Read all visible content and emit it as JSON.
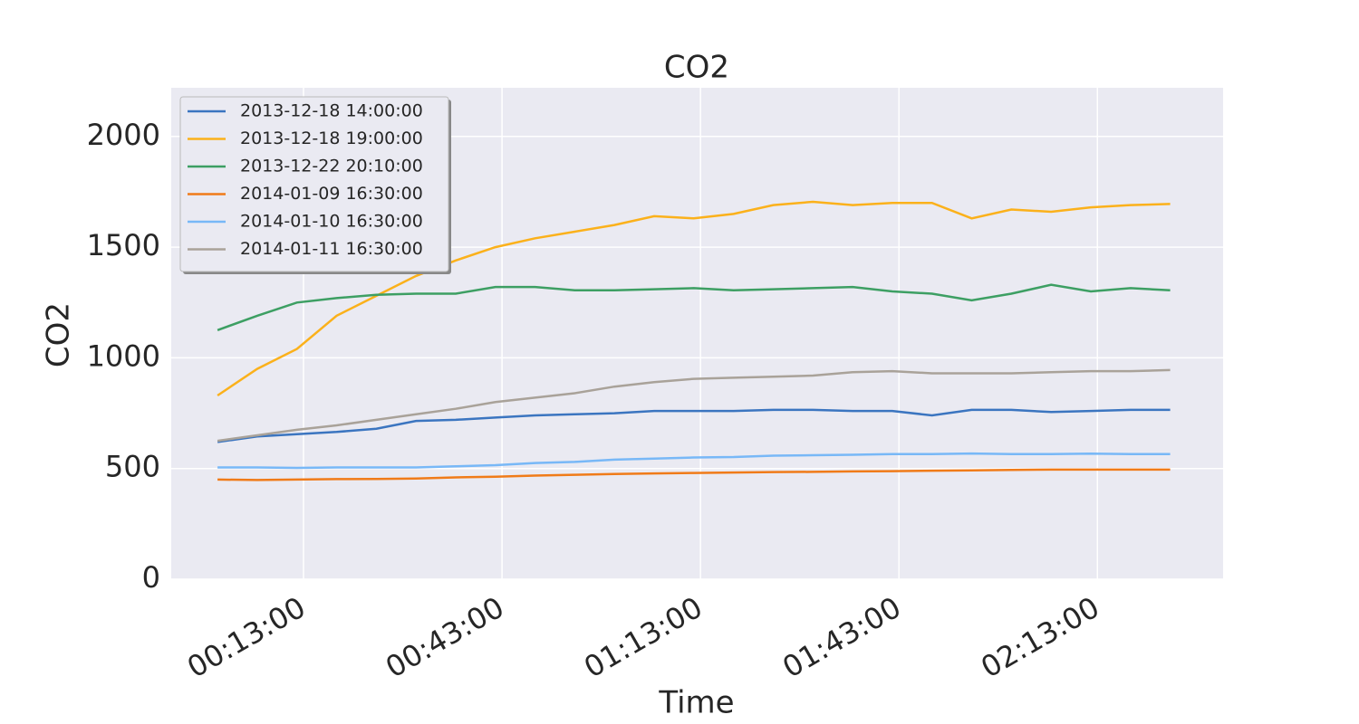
{
  "chart_data": {
    "type": "line",
    "title": "CO2",
    "xlabel": "Time",
    "ylabel": "CO2",
    "x": [
      0,
      6,
      12,
      18,
      24,
      30,
      36,
      42,
      48,
      54,
      60,
      66,
      72,
      78,
      84,
      90,
      96,
      102,
      108,
      114,
      120,
      126,
      132,
      138,
      144
    ],
    "series": [
      {
        "name": "2013-12-18 14:00:00",
        "color": "#3b75c0",
        "values": [
          620,
          645,
          655,
          665,
          680,
          715,
          720,
          730,
          740,
          745,
          750,
          760,
          760,
          760,
          765,
          765,
          760,
          760,
          740,
          765,
          765,
          755,
          760,
          765,
          765
        ]
      },
      {
        "name": "2013-12-18 19:00:00",
        "color": "#fbb11b",
        "values": [
          830,
          950,
          1040,
          1190,
          1280,
          1370,
          1440,
          1500,
          1540,
          1570,
          1600,
          1640,
          1630,
          1650,
          1690,
          1705,
          1690,
          1700,
          1700,
          1630,
          1670,
          1660,
          1680,
          1690,
          1695
        ]
      },
      {
        "name": "2013-12-22 20:10:00",
        "color": "#3d9f63",
        "values": [
          1125,
          1190,
          1250,
          1270,
          1285,
          1290,
          1290,
          1320,
          1320,
          1305,
          1305,
          1310,
          1315,
          1305,
          1310,
          1315,
          1320,
          1300,
          1290,
          1260,
          1290,
          1330,
          1300,
          1315,
          1305
        ]
      },
      {
        "name": "2014-01-09 16:30:00",
        "color": "#f07b19",
        "values": [
          450,
          448,
          450,
          452,
          453,
          455,
          460,
          463,
          468,
          472,
          475,
          478,
          480,
          482,
          484,
          485,
          487,
          488,
          490,
          492,
          494,
          495,
          495,
          495,
          495
        ]
      },
      {
        "name": "2014-01-10 16:30:00",
        "color": "#78b8f7",
        "values": [
          505,
          505,
          503,
          505,
          505,
          505,
          510,
          515,
          525,
          530,
          540,
          545,
          550,
          552,
          558,
          560,
          562,
          565,
          565,
          568,
          565,
          565,
          567,
          565,
          565
        ]
      },
      {
        "name": "2014-01-11 16:30:00",
        "color": "#a9a299",
        "values": [
          625,
          650,
          675,
          695,
          720,
          745,
          770,
          800,
          820,
          840,
          870,
          890,
          905,
          910,
          915,
          920,
          935,
          940,
          930,
          930,
          930,
          935,
          940,
          940,
          945
        ]
      }
    ],
    "xlim": [
      -7,
      152
    ],
    "ylim": [
      0,
      2220
    ],
    "xticks": [
      {
        "value": 13,
        "label": "00:13:00"
      },
      {
        "value": 43,
        "label": "00:43:00"
      },
      {
        "value": 73,
        "label": "01:13:00"
      },
      {
        "value": 103,
        "label": "01:43:00"
      },
      {
        "value": 133,
        "label": "02:13:00"
      }
    ],
    "yticks": [
      0,
      500,
      1000,
      1500,
      2000
    ],
    "grid": true,
    "legend": "upper-left"
  }
}
